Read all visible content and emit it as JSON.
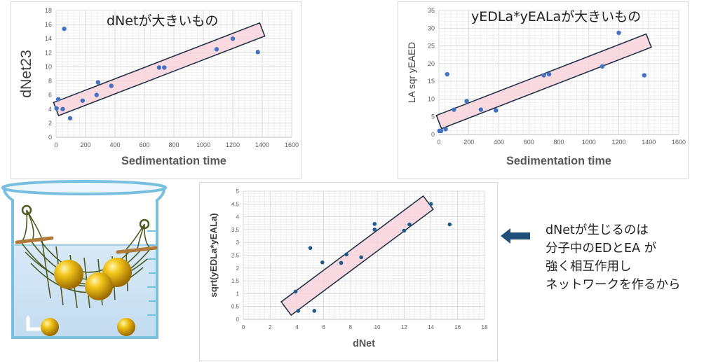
{
  "chart_data": [
    {
      "type": "scatter",
      "title": "dNetが大きいもの",
      "xlabel": "Sedimentation time",
      "ylabel": "dNet23",
      "xlim": [
        0,
        1600
      ],
      "ylim": [
        0,
        18
      ],
      "xticks": [
        "0",
        "200",
        "400",
        "600",
        "800",
        "1000",
        "1200",
        "1400",
        "1600"
      ],
      "yticks": [
        "0",
        "2",
        "4",
        "6",
        "8",
        "10",
        "12",
        "14",
        "16",
        "18"
      ],
      "grid": true,
      "x": [
        3,
        15,
        45,
        55,
        95,
        180,
        275,
        285,
        375,
        700,
        735,
        1090,
        1200,
        1370
      ],
      "y": [
        4.1,
        5.4,
        4.0,
        15.4,
        2.7,
        5.2,
        6.0,
        7.8,
        7.3,
        9.9,
        9.9,
        12.5,
        14.0,
        12.1
      ],
      "highlight_band": {
        "from": [
          0,
          4.0
        ],
        "to": [
          1400,
          15.3
        ],
        "thickness": 2.0
      }
    },
    {
      "type": "scatter",
      "title": "yEDLa*yEALaが大きいもの",
      "xlabel": "Sedimentation time",
      "ylabel": "LA sqr yEAED",
      "xlim": [
        0,
        1600
      ],
      "ylim": [
        0,
        35
      ],
      "xticks": [
        "0",
        "200",
        "400",
        "600",
        "800",
        "1000",
        "1200",
        "1400",
        "1600"
      ],
      "yticks": [
        "0",
        "5",
        "10",
        "15",
        "20",
        "25",
        "30",
        "35"
      ],
      "grid": true,
      "x": [
        3,
        15,
        45,
        55,
        100,
        185,
        280,
        380,
        700,
        735,
        1090,
        1200,
        1370
      ],
      "y": [
        1.0,
        1.0,
        1.5,
        17.0,
        7.0,
        9.4,
        7.0,
        6.8,
        16.7,
        17.0,
        19.2,
        28.7,
        16.7
      ],
      "highlight_band": {
        "from": [
          0,
          3.5
        ],
        "to": [
          1400,
          26.5
        ],
        "thickness": 4.0
      }
    },
    {
      "type": "scatter",
      "title": "",
      "xlabel": "dNet",
      "ylabel": "sqrt(yEDLa*yEALa)",
      "xlim": [
        0,
        18
      ],
      "ylim": [
        0,
        5
      ],
      "xticks": [
        "0",
        "2",
        "4",
        "6",
        "8",
        "10",
        "12",
        "14",
        "16",
        "18"
      ],
      "yticks": [
        "0",
        "0.5",
        "1",
        "1.5",
        "2",
        "2.5",
        "3",
        "3.5",
        "4",
        "4.5",
        "5"
      ],
      "grid": true,
      "x": [
        3.9,
        4.1,
        5.0,
        5.3,
        5.9,
        7.3,
        7.7,
        8.8,
        9.8,
        9.8,
        12.0,
        12.4,
        14.0,
        15.4
      ],
      "y": [
        1.08,
        0.33,
        2.78,
        0.33,
        2.22,
        2.2,
        2.53,
        2.42,
        3.72,
        3.5,
        3.46,
        3.7,
        4.5,
        3.7
      ],
      "highlight_band": {
        "from": [
          3.2,
          0.42
        ],
        "to": [
          13.8,
          4.55
        ],
        "thickness": 0.65
      }
    }
  ],
  "note": {
    "lines": [
      "dNetが生じるのは",
      "分子中のEDとEA が",
      "強く相互作用し",
      "ネットワークを作るから"
    ]
  },
  "colors": {
    "point": "#4472c4",
    "point3": "#1f5b8a",
    "band_fill": "#f8d4dc",
    "band_stroke": "#243447",
    "arrow": "#1f4e79"
  }
}
